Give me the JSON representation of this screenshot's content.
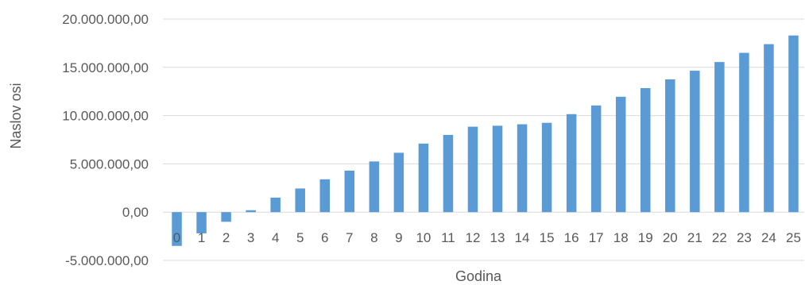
{
  "chart_data": {
    "type": "bar",
    "xlabel": "Godina",
    "ylabel": "Naslov osi",
    "categories": [
      "0",
      "1",
      "2",
      "3",
      "4",
      "5",
      "6",
      "7",
      "8",
      "9",
      "10",
      "11",
      "12",
      "13",
      "14",
      "15",
      "16",
      "17",
      "18",
      "19",
      "20",
      "21",
      "22",
      "23",
      "24",
      "25"
    ],
    "series": [
      {
        "values": [
          -3500000,
          -2200000,
          -1000000,
          200000,
          1500000,
          2450000,
          3400000,
          4300000,
          5250000,
          6150000,
          7100000,
          8000000,
          8850000,
          8950000,
          9100000,
          9250000,
          10150000,
          11050000,
          11950000,
          12850000,
          13750000,
          14650000,
          15550000,
          16500000,
          17400000,
          18300000
        ]
      }
    ],
    "yticks": [
      -5000000,
      0,
      5000000,
      10000000,
      15000000,
      20000000
    ],
    "ytick_labels": [
      "-5.000.000,00",
      "0,00",
      "5.000.000,00",
      "10.000.000,00",
      "15.000.000,00",
      "20.000.000,00"
    ],
    "ylim": [
      -5000000,
      20000000
    ],
    "grid": true,
    "bar_color": "#5b9bd5"
  }
}
